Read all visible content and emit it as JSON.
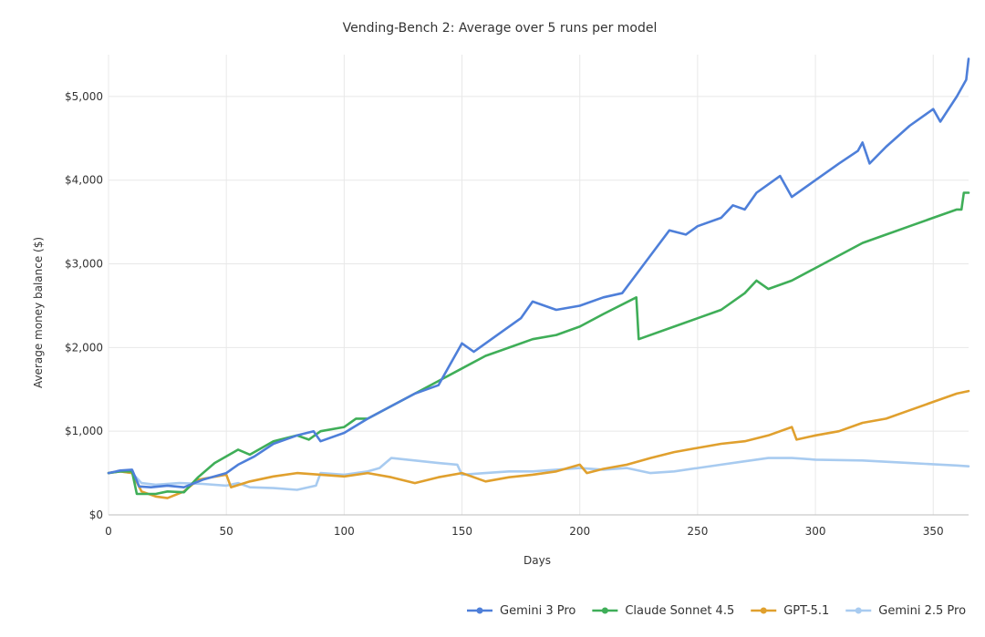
{
  "chart_data": {
    "type": "line",
    "title": "Vending-Bench 2: Average over 5 runs per model",
    "xlabel": "Days",
    "ylabel": "Average money balance ($)",
    "xlim": [
      0,
      365
    ],
    "ylim": [
      0,
      5500
    ],
    "x_ticks": [
      0,
      50,
      100,
      150,
      200,
      250,
      300,
      350
    ],
    "y_ticks": [
      0,
      1000,
      2000,
      3000,
      4000,
      5000
    ],
    "x_tick_labels": [
      "0",
      "50",
      "100",
      "150",
      "200",
      "250",
      "300",
      "350"
    ],
    "y_tick_labels": [
      "$0",
      "$1,000",
      "$2,000",
      "$3,000",
      "$4,000",
      "$5,000"
    ],
    "grid": true,
    "legend_position": "bottom-right",
    "series": [
      {
        "name": "Gemini 3 Pro",
        "color": "#4e7fd9",
        "points": [
          [
            0,
            500
          ],
          [
            5,
            530
          ],
          [
            10,
            540
          ],
          [
            13,
            340
          ],
          [
            18,
            330
          ],
          [
            25,
            350
          ],
          [
            32,
            330
          ],
          [
            40,
            420
          ],
          [
            50,
            500
          ],
          [
            55,
            600
          ],
          [
            62,
            700
          ],
          [
            70,
            850
          ],
          [
            80,
            950
          ],
          [
            87,
            1000
          ],
          [
            90,
            880
          ],
          [
            100,
            980
          ],
          [
            110,
            1150
          ],
          [
            120,
            1300
          ],
          [
            130,
            1450
          ],
          [
            140,
            1550
          ],
          [
            145,
            1800
          ],
          [
            150,
            2050
          ],
          [
            155,
            1950
          ],
          [
            165,
            2150
          ],
          [
            175,
            2350
          ],
          [
            180,
            2550
          ],
          [
            190,
            2450
          ],
          [
            200,
            2500
          ],
          [
            210,
            2600
          ],
          [
            218,
            2650
          ],
          [
            222,
            2800
          ],
          [
            230,
            3100
          ],
          [
            238,
            3400
          ],
          [
            245,
            3350
          ],
          [
            250,
            3450
          ],
          [
            260,
            3550
          ],
          [
            265,
            3700
          ],
          [
            270,
            3650
          ],
          [
            275,
            3850
          ],
          [
            280,
            3950
          ],
          [
            285,
            4050
          ],
          [
            290,
            3800
          ],
          [
            300,
            4000
          ],
          [
            310,
            4200
          ],
          [
            318,
            4350
          ],
          [
            320,
            4450
          ],
          [
            323,
            4200
          ],
          [
            330,
            4400
          ],
          [
            340,
            4650
          ],
          [
            350,
            4850
          ],
          [
            353,
            4700
          ],
          [
            360,
            5000
          ],
          [
            364,
            5200
          ],
          [
            365,
            5450
          ]
        ]
      },
      {
        "name": "Claude Sonnet 4.5",
        "color": "#3fae58",
        "points": [
          [
            0,
            500
          ],
          [
            5,
            520
          ],
          [
            10,
            520
          ],
          [
            12,
            250
          ],
          [
            20,
            250
          ],
          [
            25,
            280
          ],
          [
            32,
            270
          ],
          [
            38,
            450
          ],
          [
            45,
            620
          ],
          [
            55,
            780
          ],
          [
            60,
            720
          ],
          [
            70,
            880
          ],
          [
            80,
            950
          ],
          [
            85,
            900
          ],
          [
            90,
            1000
          ],
          [
            100,
            1050
          ],
          [
            105,
            1150
          ],
          [
            110,
            1150
          ],
          [
            120,
            1300
          ],
          [
            130,
            1450
          ],
          [
            140,
            1600
          ],
          [
            150,
            1750
          ],
          [
            160,
            1900
          ],
          [
            170,
            2000
          ],
          [
            180,
            2100
          ],
          [
            190,
            2150
          ],
          [
            200,
            2250
          ],
          [
            210,
            2400
          ],
          [
            224,
            2600
          ],
          [
            225,
            2100
          ],
          [
            240,
            2250
          ],
          [
            250,
            2350
          ],
          [
            260,
            2450
          ],
          [
            270,
            2650
          ],
          [
            275,
            2800
          ],
          [
            280,
            2700
          ],
          [
            290,
            2800
          ],
          [
            300,
            2950
          ],
          [
            310,
            3100
          ],
          [
            320,
            3250
          ],
          [
            330,
            3350
          ],
          [
            340,
            3450
          ],
          [
            350,
            3550
          ],
          [
            360,
            3650
          ],
          [
            362,
            3650
          ],
          [
            363,
            3850
          ],
          [
            365,
            3850
          ]
        ]
      },
      {
        "name": "GPT-5.1",
        "color": "#e0a02e",
        "points": [
          [
            0,
            500
          ],
          [
            5,
            520
          ],
          [
            10,
            500
          ],
          [
            14,
            280
          ],
          [
            20,
            220
          ],
          [
            25,
            200
          ],
          [
            32,
            280
          ],
          [
            38,
            420
          ],
          [
            50,
            480
          ],
          [
            52,
            330
          ],
          [
            60,
            400
          ],
          [
            70,
            460
          ],
          [
            80,
            500
          ],
          [
            90,
            480
          ],
          [
            100,
            460
          ],
          [
            110,
            500
          ],
          [
            120,
            450
          ],
          [
            130,
            380
          ],
          [
            140,
            450
          ],
          [
            150,
            500
          ],
          [
            155,
            450
          ],
          [
            160,
            400
          ],
          [
            170,
            450
          ],
          [
            180,
            480
          ],
          [
            190,
            520
          ],
          [
            200,
            600
          ],
          [
            203,
            500
          ],
          [
            210,
            550
          ],
          [
            220,
            600
          ],
          [
            230,
            680
          ],
          [
            240,
            750
          ],
          [
            250,
            800
          ],
          [
            260,
            850
          ],
          [
            270,
            880
          ],
          [
            280,
            950
          ],
          [
            290,
            1050
          ],
          [
            292,
            900
          ],
          [
            300,
            950
          ],
          [
            310,
            1000
          ],
          [
            320,
            1100
          ],
          [
            330,
            1150
          ],
          [
            340,
            1250
          ],
          [
            350,
            1350
          ],
          [
            360,
            1450
          ],
          [
            365,
            1480
          ]
        ]
      },
      {
        "name": "Gemini 2.5 Pro",
        "color": "#a8cbf0",
        "points": [
          [
            0,
            500
          ],
          [
            5,
            520
          ],
          [
            10,
            500
          ],
          [
            14,
            380
          ],
          [
            20,
            360
          ],
          [
            30,
            380
          ],
          [
            40,
            370
          ],
          [
            50,
            350
          ],
          [
            55,
            380
          ],
          [
            60,
            330
          ],
          [
            70,
            320
          ],
          [
            80,
            300
          ],
          [
            88,
            350
          ],
          [
            90,
            500
          ],
          [
            100,
            480
          ],
          [
            110,
            520
          ],
          [
            115,
            560
          ],
          [
            120,
            680
          ],
          [
            130,
            650
          ],
          [
            140,
            620
          ],
          [
            148,
            600
          ],
          [
            150,
            480
          ],
          [
            160,
            500
          ],
          [
            170,
            520
          ],
          [
            180,
            520
          ],
          [
            190,
            540
          ],
          [
            200,
            560
          ],
          [
            210,
            540
          ],
          [
            220,
            560
          ],
          [
            230,
            500
          ],
          [
            240,
            520
          ],
          [
            250,
            560
          ],
          [
            260,
            600
          ],
          [
            270,
            640
          ],
          [
            280,
            680
          ],
          [
            290,
            680
          ],
          [
            300,
            660
          ],
          [
            320,
            650
          ],
          [
            340,
            620
          ],
          [
            360,
            590
          ],
          [
            365,
            580
          ]
        ]
      }
    ]
  }
}
